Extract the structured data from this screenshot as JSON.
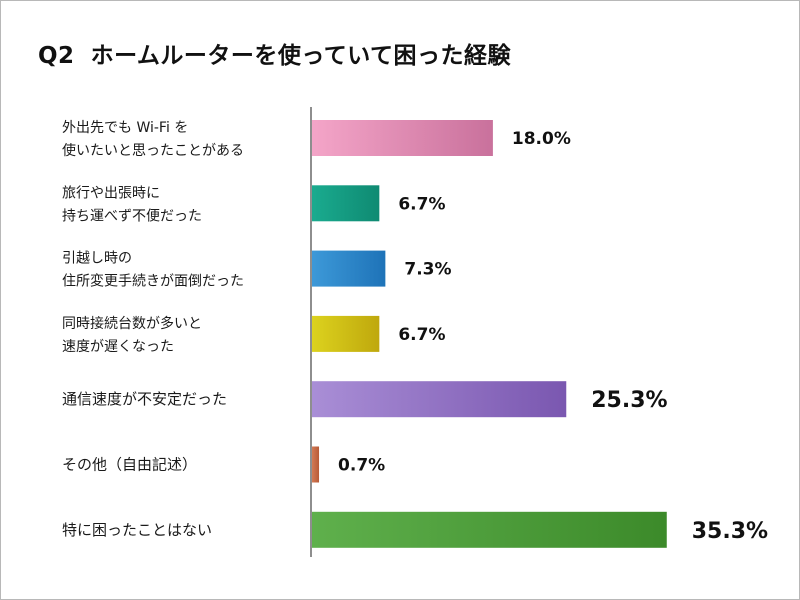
{
  "title": {
    "number": "Q2",
    "text": "ホームルーターを使っていて困った経験"
  },
  "chart_data": {
    "type": "bar",
    "orientation": "horizontal",
    "unit": "%",
    "categories": [
      [
        "外出先でも Wi-Fi を",
        "使いたいと思ったことがある"
      ],
      [
        "旅行や出張時に",
        "持ち運べず不便だった"
      ],
      [
        "引越し時の",
        "住所変更手続きが面倒だった"
      ],
      [
        "同時接続台数が多いと",
        "速度が遅くなった"
      ],
      [
        "通信速度が不安定だった"
      ],
      [
        "その他（自由記述）"
      ],
      [
        "特に困ったことはない"
      ]
    ],
    "values": [
      18.0,
      6.7,
      7.3,
      6.7,
      25.3,
      0.7,
      35.3
    ],
    "value_labels": [
      "18.0%",
      "6.7%",
      "7.3%",
      "6.7%",
      "25.3%",
      "0.7%",
      "35.3%"
    ],
    "xlim": [
      0,
      40
    ],
    "grid": false,
    "colors": [
      [
        "#f4a5c8",
        "#c9719c"
      ],
      [
        "#1aab8f",
        "#0f8a72"
      ],
      [
        "#3d99d8",
        "#1e73b8"
      ],
      [
        "#dcd21e",
        "#bfa80d"
      ],
      [
        "#a98ed6",
        "#7a57b0"
      ],
      [
        "#d27a55",
        "#b85a36"
      ],
      [
        "#5fb04c",
        "#3c8a2a"
      ]
    ],
    "emphasized": [
      false,
      false,
      false,
      false,
      true,
      false,
      true
    ]
  }
}
